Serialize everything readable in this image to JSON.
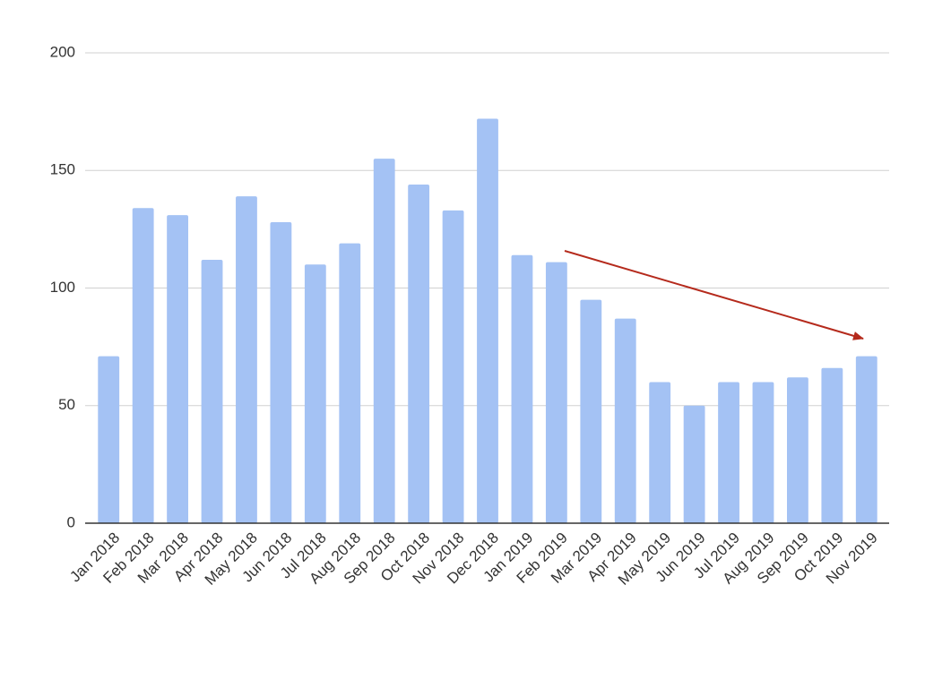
{
  "chart_data": {
    "type": "bar",
    "categories": [
      "Jan 2018",
      "Feb 2018",
      "Mar 2018",
      "Apr 2018",
      "May 2018",
      "Jun 2018",
      "Jul 2018",
      "Aug 2018",
      "Sep 2018",
      "Oct 2018",
      "Nov 2018",
      "Dec 2018",
      "Jan 2019",
      "Feb 2019",
      "Mar 2019",
      "Apr 2019",
      "May 2019",
      "Jun 2019",
      "Jul 2019",
      "Aug 2019",
      "Sep 2019",
      "Oct 2019",
      "Nov 2019"
    ],
    "values": [
      71,
      134,
      131,
      112,
      139,
      128,
      110,
      119,
      155,
      144,
      133,
      172,
      114,
      111,
      95,
      87,
      60,
      50,
      60,
      60,
      62,
      66,
      71
    ],
    "color": "#a4c2f4",
    "ylim": [
      0,
      200
    ],
    "yticks": [
      0,
      50,
      100,
      150,
      200
    ],
    "grid": true
  }
}
